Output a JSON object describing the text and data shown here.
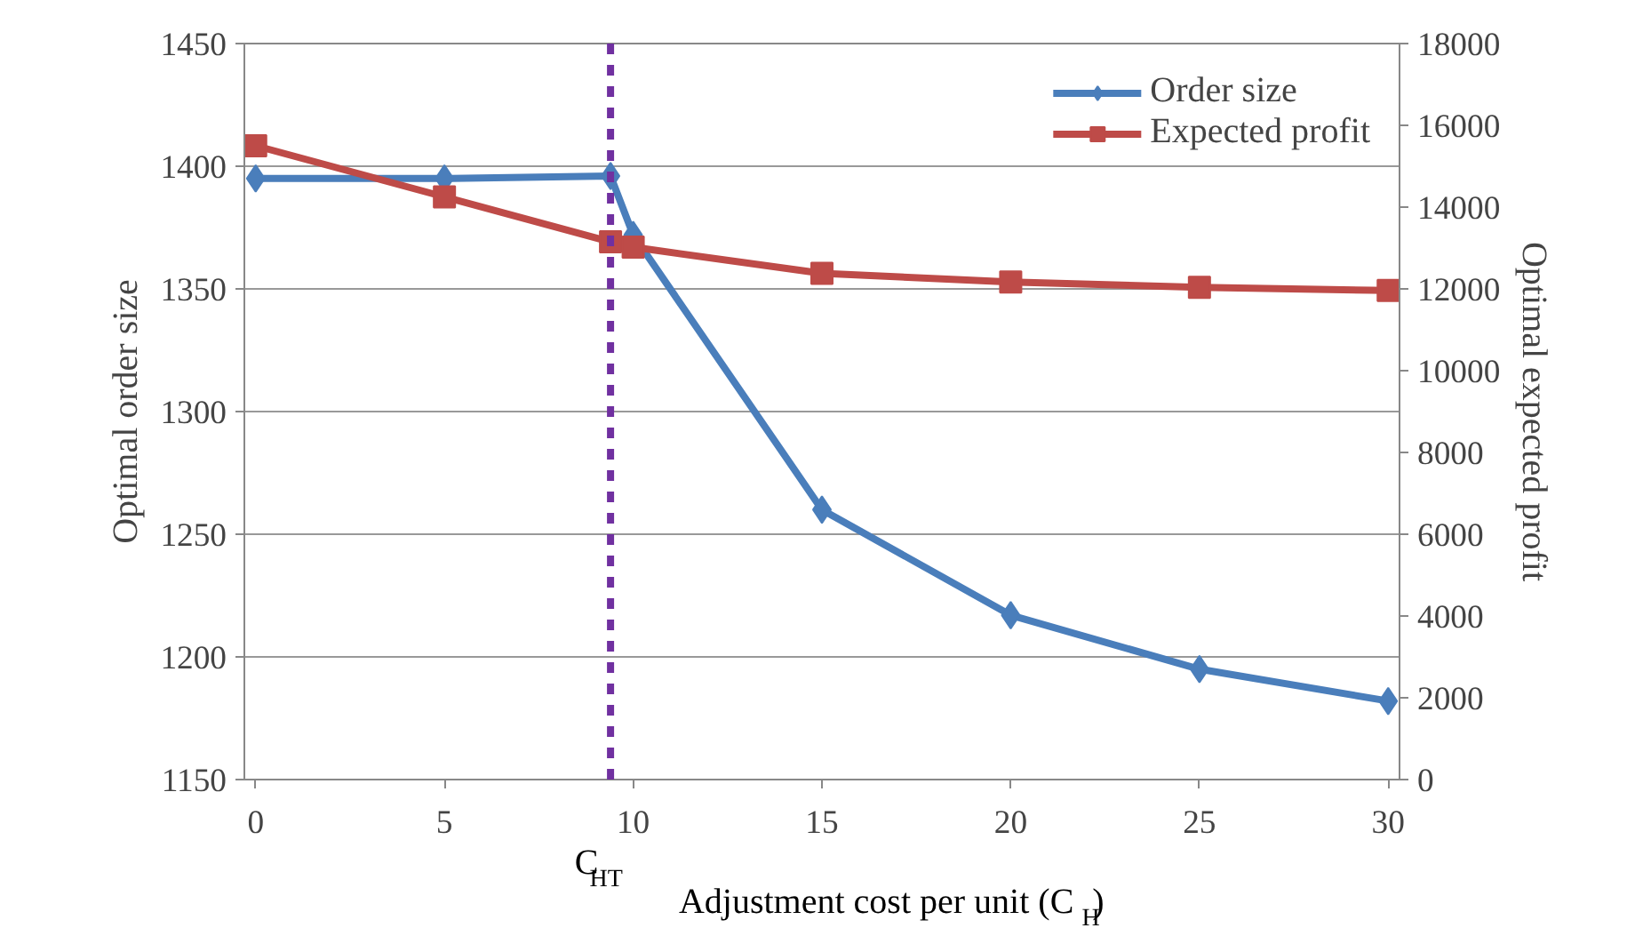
{
  "chart_data": {
    "type": "line",
    "xlabel": "Adjustment cost per unit (C$_{H}$)",
    "ylabel": "Optimal order size",
    "y2label": "Optimal expected profit",
    "x": [
      0,
      5,
      9.4,
      10,
      15,
      20,
      25,
      30
    ],
    "series": [
      {
        "name": "Order size",
        "color": "#4a7ebb",
        "marker": "diamond",
        "values": [
          1395,
          1395,
          1396,
          1372,
          1260,
          1217,
          1195,
          1182
        ]
      },
      {
        "name": "Expected profit",
        "color": "#be4b48",
        "marker": "square",
        "axis": "y2",
        "values": [
          15500,
          14250,
          13150,
          13020,
          12380,
          12170,
          12040,
          11960
        ]
      }
    ],
    "xlim": [
      -0.3,
      30.3
    ],
    "xticks": [
      0,
      5,
      10,
      15,
      20,
      25,
      30
    ],
    "ylim": [
      1150,
      1450
    ],
    "yticks": [
      1150,
      1200,
      1250,
      1300,
      1350,
      1400,
      1450
    ],
    "y2lim": [
      0,
      18000
    ],
    "y2ticks": [
      0,
      2000,
      4000,
      6000,
      8000,
      10000,
      12000,
      14000,
      16000,
      18000
    ],
    "ref_lines": [
      {
        "axis": "x",
        "value": 9.4,
        "label": "C$_{HT}$",
        "color": "#7030a0",
        "line_style": "dashed"
      }
    ],
    "grid": "y",
    "legend": "top right",
    "line_style": "solid"
  }
}
